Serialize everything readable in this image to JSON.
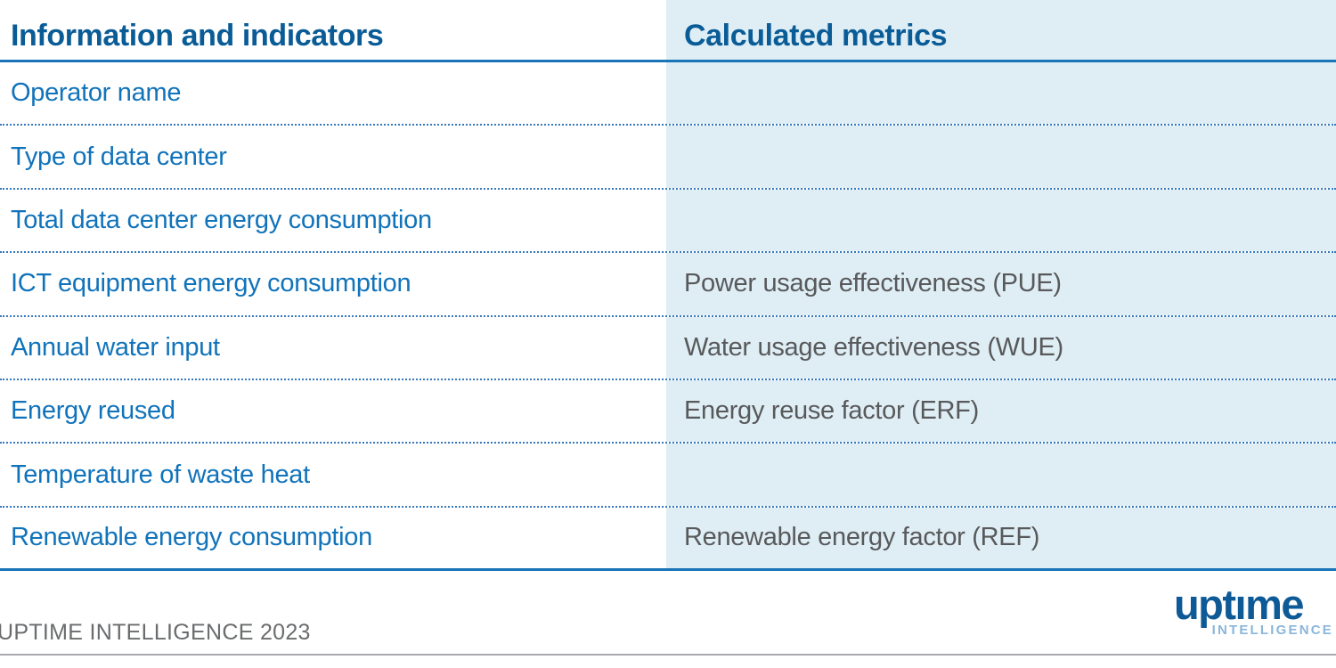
{
  "chart_data": {
    "type": "table",
    "title": "",
    "columns": [
      "Information and indicators",
      "Calculated metrics"
    ],
    "rows": [
      [
        "Operator name",
        ""
      ],
      [
        "Type of data center",
        ""
      ],
      [
        "Total data center energy consumption",
        ""
      ],
      [
        "ICT equipment energy consumption",
        "Power usage effectiveness (PUE)"
      ],
      [
        "Annual water input",
        "Water usage effectiveness (WUE)"
      ],
      [
        "Energy reused",
        "Energy reuse factor (ERF)"
      ],
      [
        "Temperature of waste heat",
        ""
      ],
      [
        "Renewable energy consumption",
        "Renewable energy factor (REF)"
      ]
    ],
    "source": "UPTIME INTELLIGENCE 2023",
    "layout_hints": {
      "right_column_shaded": true,
      "separator_style": "dotted",
      "header_rule_style": "solid"
    }
  },
  "table": {
    "header": {
      "left": "Information and indicators",
      "right": "Calculated metrics"
    },
    "rows": [
      {
        "indicator": "Operator name",
        "metric": ""
      },
      {
        "indicator": "Type of data center",
        "metric": ""
      },
      {
        "indicator": "Total data center energy consumption",
        "metric": ""
      },
      {
        "indicator": "ICT equipment energy consumption",
        "metric": "Power usage effectiveness (PUE)"
      },
      {
        "indicator": "Annual water input",
        "metric": "Water usage effectiveness (WUE)"
      },
      {
        "indicator": "Energy reused",
        "metric": "Energy reuse factor (ERF)"
      },
      {
        "indicator": "Temperature of waste heat",
        "metric": ""
      },
      {
        "indicator": "Renewable energy consumption",
        "metric": "Renewable energy factor (REF)"
      }
    ]
  },
  "footer": {
    "attribution": "UPTIME INTELLIGENCE 2023"
  },
  "logo": {
    "wordmark": "uptıme",
    "subtitle": "INTELLIGENCE"
  },
  "colors": {
    "header_text": "#0a5c97",
    "indicator_text": "#1173ba",
    "metric_text": "#58595b",
    "shaded_column_bg": "#dfeef5",
    "solid_rule": "#1a74b8",
    "dotted_rule": "#3779bd",
    "footer_text": "#6a6c6e",
    "footer_rule": "#a8aaad",
    "logo_navy": "#0e5a96",
    "logo_light_blue": "#8ab6da"
  }
}
